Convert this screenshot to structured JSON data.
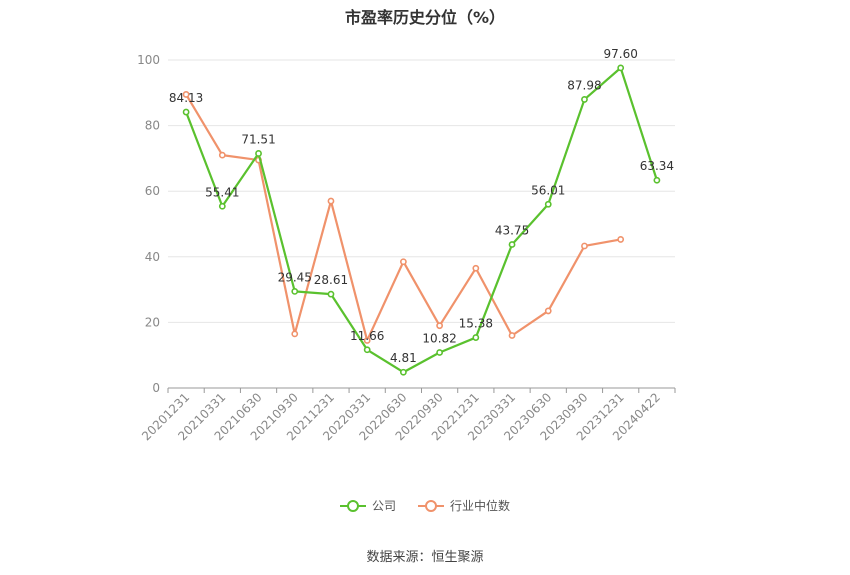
{
  "chart_data": {
    "type": "line",
    "title": "市盈率历史分位（%）",
    "xlabel": "",
    "ylabel": "",
    "ylim": [
      0,
      100
    ],
    "yticks": [
      0,
      20,
      40,
      60,
      80,
      100
    ],
    "grid": true,
    "legend_position": "bottom",
    "categories": [
      "20201231",
      "20210331",
      "20210630",
      "20210930",
      "20211231",
      "20220331",
      "20220630",
      "20220930",
      "20221231",
      "20230331",
      "20230630",
      "20230930",
      "20231231",
      "20240422"
    ],
    "series": [
      {
        "name": "公司",
        "color": "#5ac12e",
        "values": [
          84.13,
          55.41,
          71.51,
          29.45,
          28.61,
          11.66,
          4.81,
          10.82,
          15.38,
          43.75,
          56.01,
          87.98,
          97.6,
          63.34
        ],
        "labels": [
          "84.13",
          "55.41",
          "71.51",
          "29.45",
          "28.61",
          "11.66",
          "4.81",
          "10.82",
          "15.38",
          "43.75",
          "56.01",
          "87.98",
          "97.60",
          "63.34"
        ]
      },
      {
        "name": "行业中位数",
        "color": "#f0926b",
        "values": [
          89.5,
          71,
          69.5,
          16.5,
          57,
          14.5,
          38.5,
          19,
          36.5,
          16,
          23.5,
          43.3,
          45.3,
          null
        ]
      }
    ]
  },
  "source": "数据来源：恒生聚源"
}
